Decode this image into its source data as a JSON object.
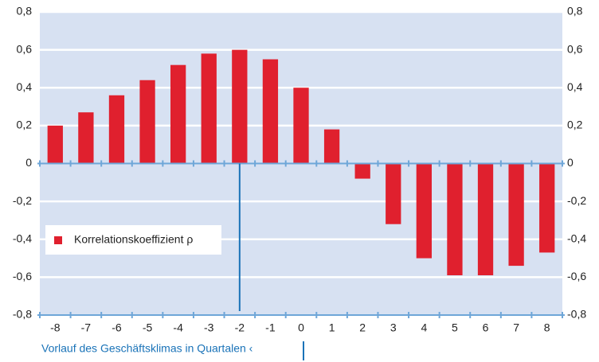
{
  "chart_data": {
    "type": "bar",
    "xlabel": "Vorlauf des Geschäftsklimas in Quartalen ‹",
    "categories": [
      "-8",
      "-7",
      "-6",
      "-5",
      "-4",
      "-3",
      "-2",
      "-1",
      "0",
      "1",
      "2",
      "3",
      "4",
      "5",
      "6",
      "7",
      "8"
    ],
    "series": [
      {
        "name": "Korrelationskoeffizient ρ",
        "color": "#e0202e",
        "values": [
          0.2,
          0.27,
          0.36,
          0.44,
          0.52,
          0.58,
          0.6,
          0.55,
          0.4,
          0.18,
          -0.08,
          -0.32,
          -0.5,
          -0.59,
          -0.59,
          -0.54,
          -0.47
        ]
      }
    ],
    "ylim": [
      -0.8,
      0.8
    ],
    "yticks": [
      {
        "value": -0.8,
        "label": "-0,8"
      },
      {
        "value": -0.6,
        "label": "-0,6"
      },
      {
        "value": -0.4,
        "label": "-0,4"
      },
      {
        "value": -0.2,
        "label": "-0,2"
      },
      0,
      {
        "value": 0.2,
        "label": "0,2"
      },
      {
        "value": 0.4,
        "label": "0,4"
      },
      {
        "value": 0.6,
        "label": "0,6"
      },
      {
        "value": 0.8,
        "label": "0,8"
      }
    ],
    "grid": true,
    "legend": "lower left"
  }
}
